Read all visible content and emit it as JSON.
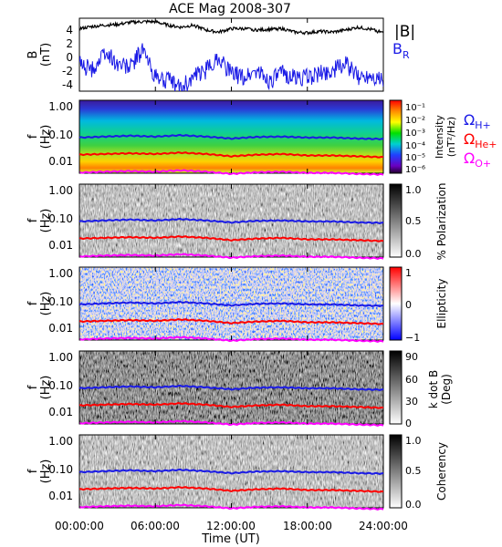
{
  "title": "ACE Mag 2008-307",
  "x_axis": {
    "label": "Time (UT)",
    "ticks": [
      "00:00:00",
      "06:00:00",
      "12:00:00",
      "18:00:00",
      "24:00:00"
    ]
  },
  "legend": {
    "b_total": "|B|",
    "b_radial": "B",
    "b_radial_sub": "R",
    "omega": "Ω",
    "omega_h_sub": "H+",
    "omega_he_sub": "He+",
    "omega_o_sub": "O+"
  },
  "colors": {
    "b_total": "#000000",
    "b_radial": "#1a1ae6",
    "omega_h": "#1a1ae6",
    "omega_he": "#ff0000",
    "omega_o": "#ff00ff"
  },
  "panels": {
    "field": {
      "ylabel": "B",
      "yunit": "(nT)",
      "yticks": [
        "4",
        "2",
        "0",
        "-2",
        "-4"
      ]
    },
    "intensity": {
      "ylabel": "f",
      "yunit": "(Hz)",
      "yticks": [
        "1.00",
        "0.10",
        "0.01"
      ],
      "cbar_title": "Intensity",
      "cbar_unit": "(nT²/Hz)",
      "cbar_ticks": [
        "10⁻¹",
        "10⁻²",
        "10⁻³",
        "10⁻⁴",
        "10⁻⁵",
        "10⁻⁶"
      ]
    },
    "polarization": {
      "ylabel": "f",
      "yunit": "(Hz)",
      "yticks": [
        "1.00",
        "0.10",
        "0.01"
      ],
      "cbar_title": "% Polarization",
      "cbar_ticks": [
        "1.0",
        "0.5",
        "0.0"
      ]
    },
    "ellipticity": {
      "ylabel": "f",
      "yunit": "(Hz)",
      "yticks": [
        "1.00",
        "0.10",
        "0.01"
      ],
      "cbar_title": "Ellipticity",
      "cbar_ticks": [
        "1",
        "0",
        "−1"
      ]
    },
    "kdotb": {
      "ylabel": "f",
      "yunit": "(Hz)",
      "yticks": [
        "1.00",
        "0.10",
        "0.01"
      ],
      "cbar_title": "k dot B",
      "cbar_unit": "(Deg)",
      "cbar_ticks": [
        "90",
        "60",
        "30",
        "0"
      ]
    },
    "coherency": {
      "ylabel": "f",
      "yunit": "(Hz)",
      "yticks": [
        "1.00",
        "0.10",
        "0.01"
      ],
      "cbar_title": "Coherency",
      "cbar_ticks": [
        "1.0",
        "0.5",
        "0.0"
      ]
    }
  },
  "chart_data": [
    {
      "type": "line",
      "panel": "field",
      "xlabel": "Time (UT)",
      "ylabel": "B (nT)",
      "xlim": [
        0,
        24
      ],
      "ylim": [
        -5,
        5.5
      ],
      "x": [
        0,
        1,
        2,
        3,
        4,
        5,
        6,
        7,
        8,
        9,
        10,
        11,
        12,
        13,
        14,
        15,
        16,
        17,
        18,
        19,
        20,
        21,
        22,
        23,
        24
      ],
      "series": [
        {
          "name": "|B|",
          "values": [
            4.0,
            4.3,
            4.5,
            4.6,
            4.9,
            5.0,
            5.0,
            4.5,
            4.2,
            4.5,
            3.8,
            3.5,
            4.0,
            4.0,
            3.8,
            3.9,
            4.0,
            3.5,
            3.4,
            3.6,
            3.5,
            3.8,
            4.2,
            3.9,
            3.4
          ]
        },
        {
          "name": "B",
          "values": [
            -1.0,
            -2.0,
            0.5,
            -1.0,
            -1.5,
            1.0,
            -3.0,
            -3.5,
            -4.5,
            -3.0,
            -2.0,
            0.0,
            -2.5,
            -3.0,
            -2.0,
            -3.5,
            -2.5,
            -3.0,
            -3.0,
            -2.5,
            -2.0,
            -1.0,
            -3.0,
            -2.5,
            -3.5
          ]
        }
      ]
    },
    {
      "type": "heatmap",
      "panel": "spectra",
      "xlabel": "Time (UT)",
      "ylabel": "f (Hz)",
      "xlim": [
        0,
        24
      ],
      "ylim": [
        0.004,
        1.2
      ],
      "yscale": "log",
      "x": [
        0,
        2,
        4,
        6,
        8,
        10,
        12,
        14,
        16,
        18,
        20,
        22,
        24
      ],
      "series": [
        {
          "name": "ΩH+",
          "values": [
            0.065,
            0.07,
            0.075,
            0.07,
            0.078,
            0.07,
            0.06,
            0.068,
            0.07,
            0.065,
            0.065,
            0.06,
            0.058
          ]
        },
        {
          "name": "ΩHe+",
          "values": [
            0.017,
            0.018,
            0.019,
            0.018,
            0.02,
            0.018,
            0.015,
            0.017,
            0.018,
            0.016,
            0.016,
            0.015,
            0.014
          ]
        },
        {
          "name": "ΩO+",
          "values": [
            0.0042,
            0.0045,
            0.0047,
            0.0045,
            0.005,
            0.0045,
            0.0038,
            0.0043,
            0.0045,
            0.0041,
            0.0041,
            0.0038,
            0.0036
          ]
        }
      ]
    }
  ]
}
